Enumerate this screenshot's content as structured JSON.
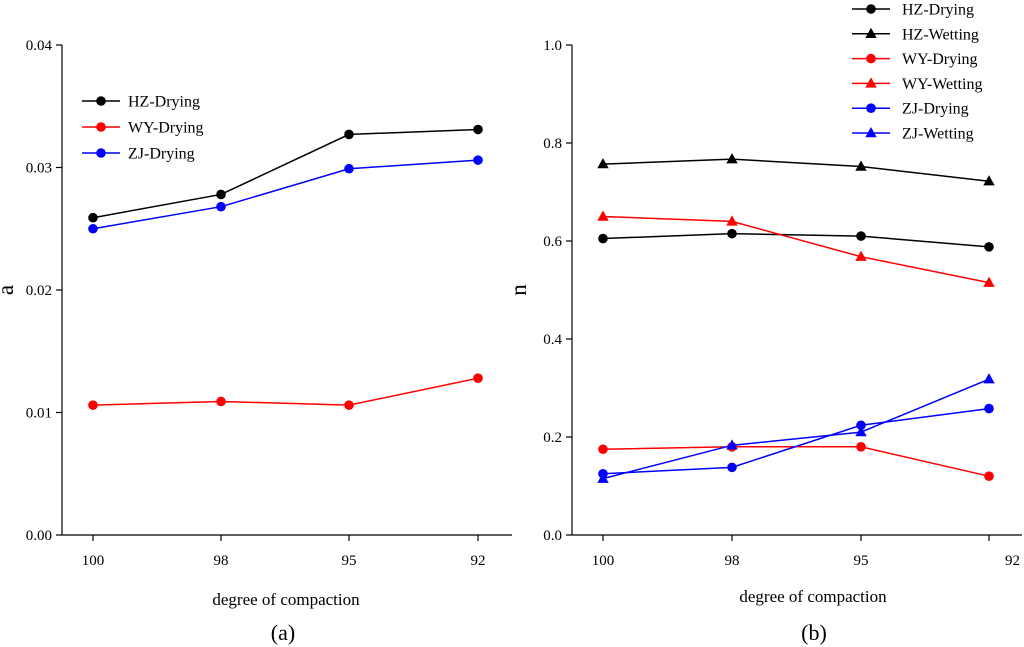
{
  "colors": {
    "HZ": "#000000",
    "WY": "#ff0000",
    "ZJ": "#0000ff"
  },
  "chart_data": [
    {
      "type": "line",
      "panel_label": "(a)",
      "xlabel": "degree of compaction",
      "ylabel": "a",
      "categories": [
        "100",
        "98",
        "95",
        "92"
      ],
      "ylim": [
        0,
        0.04
      ],
      "yticks": [
        "0.00",
        "0.01",
        "0.02",
        "0.03",
        "0.04"
      ],
      "grid": false,
      "legend_position": "top-left",
      "series": [
        {
          "name": "HZ-Drying",
          "color": "#000000",
          "marker": "circle",
          "values": [
            0.0259,
            0.0278,
            0.0327,
            0.0331
          ]
        },
        {
          "name": "WY-Drying",
          "color": "#ff0000",
          "marker": "circle",
          "values": [
            0.0106,
            0.0109,
            0.0106,
            0.0128
          ]
        },
        {
          "name": "ZJ-Drying",
          "color": "#0000ff",
          "marker": "circle",
          "values": [
            0.025,
            0.0268,
            0.0299,
            0.0306
          ]
        }
      ]
    },
    {
      "type": "line",
      "panel_label": "(b)",
      "xlabel": "degree of compaction",
      "ylabel": "n",
      "categories": [
        "100",
        "98",
        "95",
        "92"
      ],
      "ylim": [
        0,
        1.0
      ],
      "yticks": [
        "0.0",
        "0.2",
        "0.4",
        "0.6",
        "0.8",
        "1.0"
      ],
      "grid": false,
      "legend_position": "top-right",
      "series": [
        {
          "name": "HZ-Drying",
          "color": "#000000",
          "marker": "circle",
          "values": [
            0.605,
            0.615,
            0.61,
            0.588
          ]
        },
        {
          "name": "HZ-Wetting",
          "color": "#000000",
          "marker": "triangle",
          "values": [
            0.757,
            0.767,
            0.752,
            0.722
          ]
        },
        {
          "name": "WY-Drying",
          "color": "#ff0000",
          "marker": "circle",
          "values": [
            0.175,
            0.18,
            0.18,
            0.12
          ]
        },
        {
          "name": "WY-Wetting",
          "color": "#ff0000",
          "marker": "triangle",
          "values": [
            0.65,
            0.64,
            0.568,
            0.515
          ]
        },
        {
          "name": "ZJ-Drying",
          "color": "#0000ff",
          "marker": "circle",
          "values": [
            0.125,
            0.138,
            0.224,
            0.258
          ]
        },
        {
          "name": "ZJ-Wetting",
          "color": "#0000ff",
          "marker": "triangle",
          "values": [
            0.115,
            0.183,
            0.21,
            0.318
          ]
        }
      ]
    }
  ]
}
